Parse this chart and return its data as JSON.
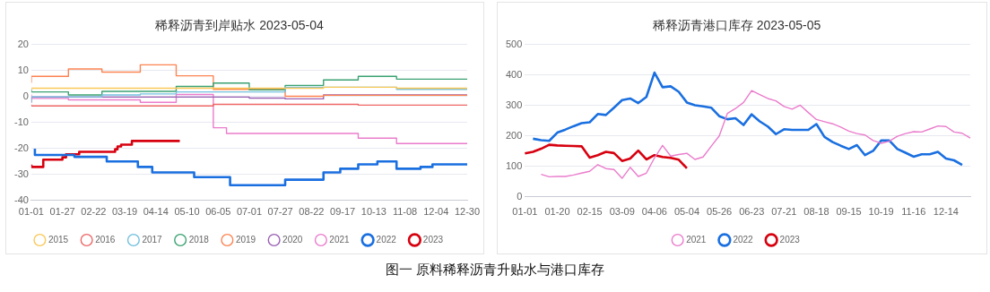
{
  "chart_data": [
    {
      "type": "step",
      "title": "稀释沥青到岸贴水 2023-05-04",
      "xlim": [
        "--01-01",
        "--12-30"
      ],
      "xticks": [
        {
          "value": "--01-01",
          "label": "01-01"
        },
        {
          "value": "--01-27",
          "label": "01-27"
        },
        {
          "value": "--02-22",
          "label": "02-22"
        },
        {
          "value": "--03-19",
          "label": "03-19"
        },
        {
          "value": "--04-14",
          "label": "04-14"
        },
        {
          "value": "--05-10",
          "label": "05-10"
        },
        {
          "value": "--06-05",
          "label": "06-05"
        },
        {
          "value": "--07-01",
          "label": "07-01"
        },
        {
          "value": "--07-27",
          "label": "07-27"
        },
        {
          "value": "--08-22",
          "label": "08-22"
        },
        {
          "value": "--09-17",
          "label": "09-17"
        },
        {
          "value": "--10-13",
          "label": "10-13"
        },
        {
          "value": "--11-08",
          "label": "11-08"
        },
        {
          "value": "--12-04",
          "label": "12-04"
        },
        {
          "value": "--12-30",
          "label": "12-30"
        }
      ],
      "ylim": [
        -40,
        20
      ],
      "yticks": [
        -40,
        -30,
        -20,
        -10,
        0,
        10,
        20
      ],
      "grid": "y",
      "legend": "bottom",
      "annotations": [
        "图一 原料稀释沥青升贴水与港口库存"
      ],
      "series": [
        {
          "name": "2015",
          "color": "#fac858",
          "x": [
            "--01-01",
            "--09-01",
            "--11-01",
            "--12-01",
            "--12-30"
          ],
          "values": [
            3.2,
            3.2,
            3.6,
            3.2,
            3.2
          ]
        },
        {
          "name": "2016",
          "color": "#ee6666",
          "x": [
            "--01-01",
            "--06-01",
            "--09-30",
            "--11-01",
            "--12-30"
          ],
          "values": [
            -3.1,
            -3.6,
            -3,
            -3.3,
            -3.3
          ]
        },
        {
          "name": "2017",
          "color": "#73c0de",
          "x": [
            "--01-01",
            "--02-29",
            "--04-01",
            "--05-01",
            "--07-31",
            "--11-01",
            "--12-01",
            "--12-30"
          ],
          "values": [
            -2.1,
            -0.1,
            0.6,
            1,
            1.8,
            3.6,
            2.8,
            2.8
          ]
        },
        {
          "name": "2018",
          "color": "#3ba272",
          "x": [
            "--01-01",
            "--02-01",
            "--02-29",
            "--05-01",
            "--06-01",
            "--07-01",
            "--07-31",
            "--09-01",
            "--09-30",
            "--11-01",
            "--12-01",
            "--12-30"
          ],
          "values": [
            2.9,
            1.8,
            0.6,
            2,
            3.9,
            5.2,
            2.6,
            4.3,
            6.4,
            7.8,
            6.7,
            6.7
          ]
        },
        {
          "name": "2019",
          "color": "#fc8452",
          "x": [
            "--01-01",
            "--02-01",
            "--02-29",
            "--04-01",
            "--05-01",
            "--06-01",
            "--07-31",
            "--09-01",
            "--11-01",
            "--12-30"
          ],
          "values": [
            5.3,
            7.8,
            10.6,
            9.4,
            12.2,
            8,
            2.8,
            0.1,
            0.5,
            0.5
          ]
        },
        {
          "name": "2020",
          "color": "#9a60b4",
          "x": [
            "--01-01",
            "--07-01",
            "--07-31",
            "--09-01",
            "--11-01",
            "--12-30"
          ],
          "values": [
            -2.4,
            -0.2,
            -0.6,
            -0.9,
            0.6,
            0.6
          ]
        },
        {
          "name": "2021",
          "color": "#ea7ccc",
          "x": [
            "--01-01",
            "--02-01",
            "--04-01",
            "--05-01",
            "--06-01",
            "--06-12",
            "--09-30",
            "--11-01",
            "--12-01",
            "--12-30"
          ],
          "values": [
            0.8,
            -0.7,
            -1.3,
            -2.2,
            0.8,
            -12,
            -14.2,
            -16,
            -18.1,
            -18.1
          ]
        },
        {
          "name": "2022",
          "color": "#1a6fe0",
          "x": [
            "--01-04",
            "--02-06",
            "--03-04",
            "--03-30",
            "--04-11",
            "--05-16",
            "--06-15",
            "--07-31",
            "--09-01",
            "--09-15",
            "--09-30",
            "--10-16",
            "--11-01",
            "--11-21",
            "--12-01",
            "--12-26",
            "--12-30"
          ],
          "values": [
            -20.1,
            -22.5,
            -23.2,
            -25,
            -27.1,
            -29.2,
            -31,
            -34.1,
            -32,
            -29.2,
            -27.8,
            -26.1,
            -25,
            -27.8,
            -27.1,
            -26.1,
            -26.1
          ]
        },
        {
          "name": "2023",
          "color": "#d7000f",
          "x": [
            "--01-01",
            "--01-11",
            "--01-27",
            "--01-30",
            "--02-10",
            "--03-11",
            "--03-13",
            "--03-16",
            "--03-25",
            "--03-31",
            "--05-04"
          ],
          "values": [
            -26.2,
            -27.1,
            -24.3,
            -23.4,
            -22.2,
            -21.3,
            -20.3,
            -19.2,
            -18.5,
            -17.1,
            -17.1
          ]
        }
      ]
    },
    {
      "type": "line",
      "title": "稀释沥青港口库存 2023-05-05",
      "categories": [
        "01-01",
        null,
        null,
        null,
        "01-20",
        null,
        null,
        null,
        "02-15",
        null,
        null,
        null,
        "03-09",
        null,
        null,
        null,
        "04-06",
        null,
        null,
        null,
        "05-04",
        null,
        null,
        null,
        "05-26",
        null,
        null,
        null,
        "06-23",
        null,
        null,
        null,
        "07-21",
        null,
        null,
        null,
        "08-18",
        null,
        null,
        null,
        "09-15",
        null,
        null,
        null,
        "10-19",
        null,
        null,
        null,
        "11-16",
        null,
        null,
        null,
        "12-14",
        null,
        null,
        null
      ],
      "ylim": [
        0,
        500
      ],
      "yticks": [
        0,
        100,
        200,
        300,
        400,
        500
      ],
      "grid": "y",
      "legend": "bottom",
      "series": [
        {
          "name": "2021",
          "color": "#ea7ccc",
          "values": [
            null,
            null,
            74,
            66,
            67,
            67,
            72,
            78,
            84,
            106,
            93,
            90,
            61,
            97,
            67,
            78,
            128,
            169,
            134,
            139,
            143,
            123,
            131,
            166,
            200,
            274,
            290,
            310,
            349,
            336,
            323,
            315,
            297,
            288,
            301,
            277,
            254,
            247,
            240,
            229,
            216,
            208,
            203,
            185,
            176,
            183,
            199,
            208,
            214,
            213,
            223,
            233,
            231,
            213,
            209,
            193
          ]
        },
        {
          "name": "2022",
          "color": "#1a6fe0",
          "values": [
            null,
            191,
            186,
            184,
            211,
            221,
            232,
            242,
            245,
            272,
            269,
            293,
            318,
            323,
            308,
            328,
            408,
            360,
            363,
            345,
            310,
            301,
            297,
            293,
            265,
            255,
            258,
            236,
            271,
            248,
            231,
            206,
            222,
            220,
            220,
            220,
            239,
            197,
            180,
            168,
            157,
            170,
            137,
            151,
            185,
            185,
            157,
            145,
            132,
            140,
            140,
            148,
            126,
            120,
            105,
            null
          ]
        },
        {
          "name": "2023",
          "color": "#d7000f",
          "values": [
            143,
            148,
            158,
            171,
            169,
            168,
            167,
            166,
            129,
            137,
            148,
            144,
            118,
            126,
            152,
            123,
            137,
            131,
            128,
            122,
            94,
            null,
            null,
            null,
            null,
            null,
            null,
            null,
            null,
            null,
            null,
            null,
            null,
            null,
            null,
            null,
            null,
            null,
            null,
            null,
            null,
            null,
            null,
            null,
            null,
            null,
            null,
            null,
            null,
            null,
            null,
            null,
            null,
            null,
            null,
            null
          ]
        }
      ]
    }
  ]
}
